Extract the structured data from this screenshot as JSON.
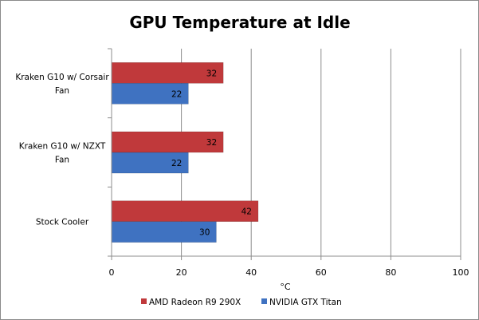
{
  "chart_data": {
    "type": "bar",
    "orientation": "horizontal",
    "title": "GPU Temperature at Idle",
    "xlabel": "°C",
    "ylabel": "",
    "xlim": [
      0,
      100
    ],
    "x_ticks": [
      "0",
      "20",
      "40",
      "60",
      "80",
      "100"
    ],
    "categories": [
      [
        "Kraken G10 w/ Corsair",
        "Fan"
      ],
      [
        "Kraken G10 w/ NZXT",
        "Fan"
      ],
      [
        "Stock Cooler"
      ]
    ],
    "series": [
      {
        "name": "AMD Radeon R9 290X",
        "values": [
          32,
          32,
          42
        ],
        "color": "#c0393b"
      },
      {
        "name": "NVIDIA GTX Titan",
        "values": [
          22,
          22,
          30
        ],
        "color": "#3f72c1"
      }
    ],
    "grid": "vertical major gridlines",
    "legend": "bottom"
  }
}
